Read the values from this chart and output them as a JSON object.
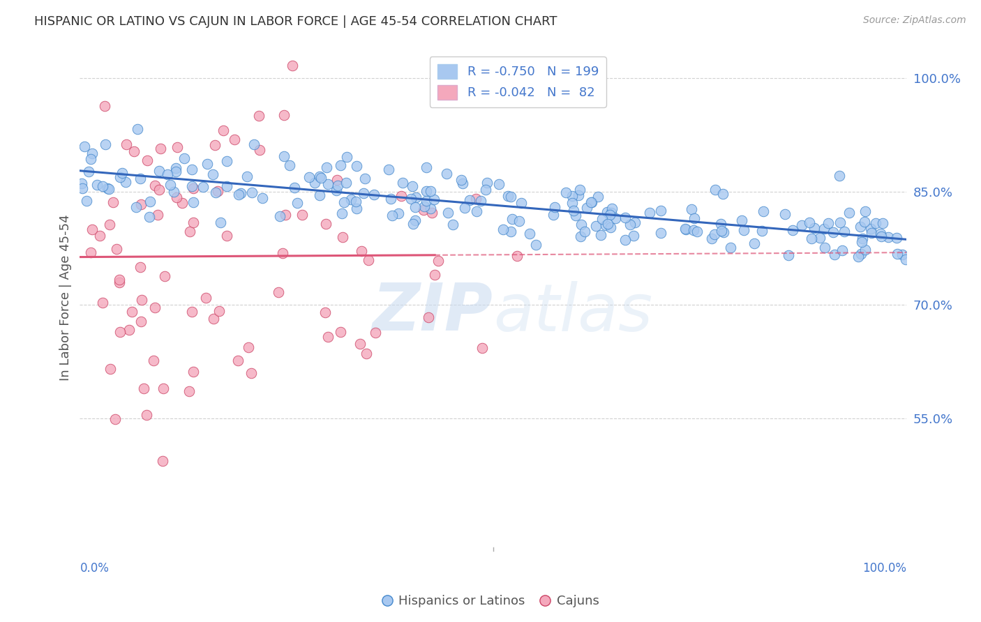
{
  "title": "HISPANIC OR LATINO VS CAJUN IN LABOR FORCE | AGE 45-54 CORRELATION CHART",
  "source": "Source: ZipAtlas.com",
  "ylabel": "In Labor Force | Age 45-54",
  "yticks": [
    55.0,
    70.0,
    85.0,
    100.0
  ],
  "ytick_labels": [
    "55.0%",
    "70.0%",
    "85.0%",
    "100.0%"
  ],
  "blue_R": "-0.750",
  "blue_N": "199",
  "pink_R": "-0.042",
  "pink_N": "82",
  "blue_color": "#a8c8f0",
  "pink_color": "#f4a8bc",
  "blue_line_color": "#3366bb",
  "pink_line_color": "#dd5577",
  "blue_dot_edge": "#4488cc",
  "pink_dot_edge": "#cc4466",
  "watermark_color": "#c8daf0",
  "legend_label_blue": "Hispanics or Latinos",
  "legend_label_pink": "Cajuns",
  "background_color": "#ffffff",
  "grid_color": "#cccccc",
  "title_color": "#333333",
  "axis_label_color": "#4477cc",
  "blue_seed": 12,
  "pink_seed": 99,
  "xlim": [
    0.0,
    1.0
  ],
  "ylim": [
    0.38,
    1.04
  ]
}
